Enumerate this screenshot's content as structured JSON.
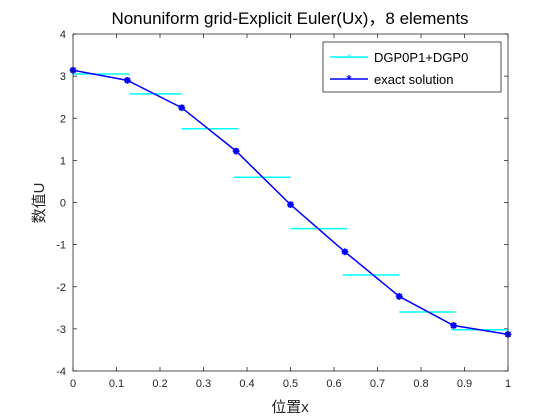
{
  "chart_data": {
    "type": "line",
    "title": "Nonuniform grid-Explicit Euler(Ux)，8 elements",
    "xlabel": "位置x",
    "ylabel": "数值U",
    "xlim": [
      0,
      1
    ],
    "ylim": [
      -4,
      4
    ],
    "x_ticks": [
      0,
      0.1,
      0.2,
      0.3,
      0.4,
      0.5,
      0.6,
      0.7,
      0.8,
      0.9,
      1
    ],
    "x_tick_labels": [
      "0",
      "0.1",
      "0.2",
      "0.3",
      "0.4",
      "0.5",
      "0.6",
      "0.7",
      "0.8",
      "0.9",
      "1"
    ],
    "y_ticks": [
      -4,
      -3,
      -2,
      -1,
      0,
      1,
      2,
      3,
      4
    ],
    "y_tick_labels": [
      "-4",
      "-3",
      "-2",
      "-1",
      "0",
      "1",
      "2",
      "3",
      "4"
    ],
    "grid": false,
    "legend_position": "top-right",
    "series": [
      {
        "name": "DGP0P1+DGP0",
        "color": "#00FFFF",
        "style": "piecewise-constant",
        "segments": [
          {
            "x0": 0.0,
            "x1": 0.13,
            "y": 3.05
          },
          {
            "x0": 0.13,
            "x1": 0.25,
            "y": 2.58
          },
          {
            "x0": 0.25,
            "x1": 0.38,
            "y": 1.75
          },
          {
            "x0": 0.37,
            "x1": 0.5,
            "y": 0.6
          },
          {
            "x0": 0.5,
            "x1": 0.63,
            "y": -0.62
          },
          {
            "x0": 0.62,
            "x1": 0.75,
            "y": -1.72
          },
          {
            "x0": 0.75,
            "x1": 0.88,
            "y": -2.6
          },
          {
            "x0": 0.87,
            "x1": 1.0,
            "y": -3.02
          }
        ]
      },
      {
        "name": "exact solution",
        "color": "#0000FF",
        "style": "line-with-star-markers",
        "x": [
          0,
          0.125,
          0.25,
          0.375,
          0.5,
          0.625,
          0.75,
          0.875,
          1
        ],
        "y": [
          3.14,
          2.9,
          2.25,
          1.22,
          -0.05,
          -1.17,
          -2.23,
          -2.92,
          -3.13
        ]
      }
    ]
  }
}
